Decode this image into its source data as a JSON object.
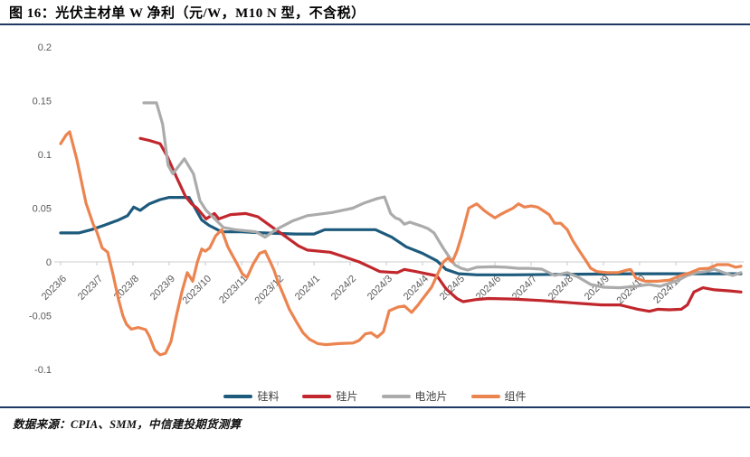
{
  "figure": {
    "title": "图 16：光伏主材单 W 净利（元/W，M10 N 型，不含税）",
    "source": "数据来源：CPIA、SMM，中信建投期货测算"
  },
  "colors": {
    "rule": "#1f3864",
    "axis_line": "#d6d6d6",
    "tick_mark": "#c8c8c8",
    "axis_text": "#595959"
  },
  "chart_data": {
    "type": "line",
    "title": "光伏主材单W净利（元/W，M10 N型，不含税）",
    "xlabel": "",
    "ylabel": "",
    "ylim": [
      -0.115,
      0.205
    ],
    "grid": false,
    "legend_position": "bottom",
    "x_axis": {
      "unit": "months since 2023/6",
      "labels": [
        "2023/6",
        "2023/7",
        "2023/8",
        "2023/9",
        "2023/10",
        "2023/11",
        "2023/12",
        "2024/1",
        "2024/2",
        "2024/3",
        "2024/4",
        "2024/5",
        "2024/6",
        "2024/7",
        "2024/8",
        "2024/9",
        "2024/10",
        "2024/11"
      ]
    },
    "y_axis": {
      "ticks": [
        {
          "v": 0.2,
          "label": "0.2"
        },
        {
          "v": 0.15,
          "label": "0.15"
        },
        {
          "v": 0.1,
          "label": "0.1"
        },
        {
          "v": 0.05,
          "label": "0.05"
        },
        {
          "v": 0,
          "label": "0"
        },
        {
          "v": -0.05,
          "label": "-0.05"
        },
        {
          "v": -0.1,
          "label": "-0.1"
        }
      ]
    },
    "series": [
      {
        "id": "polysilicon",
        "name": "硅料",
        "color": "#1d5a7c",
        "points": [
          [
            0,
            0.027
          ],
          [
            0.5,
            0.027
          ],
          [
            0.85,
            0.03
          ],
          [
            1.2,
            0.034
          ],
          [
            1.6,
            0.039
          ],
          [
            1.85,
            0.043
          ],
          [
            2.02,
            0.051
          ],
          [
            2.2,
            0.048
          ],
          [
            2.45,
            0.054
          ],
          [
            2.75,
            0.058
          ],
          [
            3.0,
            0.06
          ],
          [
            3.55,
            0.06
          ],
          [
            3.7,
            0.051
          ],
          [
            3.9,
            0.039
          ],
          [
            4.1,
            0.034
          ],
          [
            4.45,
            0.028
          ],
          [
            5.0,
            0.028
          ],
          [
            5.6,
            0.027
          ],
          [
            6.5,
            0.026
          ],
          [
            7.0,
            0.026
          ],
          [
            7.3,
            0.03
          ],
          [
            8.0,
            0.03
          ],
          [
            8.7,
            0.03
          ],
          [
            9.15,
            0.023
          ],
          [
            9.55,
            0.014
          ],
          [
            10.0,
            0.008
          ],
          [
            10.4,
            0.001
          ],
          [
            10.65,
            -0.007
          ],
          [
            11.0,
            -0.011
          ],
          [
            11.5,
            -0.012
          ],
          [
            12.5,
            -0.012
          ],
          [
            14.0,
            -0.0115
          ],
          [
            16.0,
            -0.011
          ],
          [
            18.0,
            -0.011
          ],
          [
            18.8,
            -0.011
          ]
        ]
      },
      {
        "id": "wafer",
        "name": "硅片",
        "color": "#c1272d",
        "points": [
          [
            2.2,
            0.115
          ],
          [
            2.45,
            0.113
          ],
          [
            2.75,
            0.11
          ],
          [
            2.95,
            0.098
          ],
          [
            3.2,
            0.079
          ],
          [
            3.45,
            0.061
          ],
          [
            3.62,
            0.054
          ],
          [
            3.77,
            0.05
          ],
          [
            4.02,
            0.04
          ],
          [
            4.25,
            0.045
          ],
          [
            4.37,
            0.04
          ],
          [
            4.7,
            0.044
          ],
          [
            5.12,
            0.045
          ],
          [
            5.45,
            0.042
          ],
          [
            5.82,
            0.033
          ],
          [
            6.2,
            0.024
          ],
          [
            6.57,
            0.015
          ],
          [
            6.82,
            0.011
          ],
          [
            7.45,
            0.009
          ],
          [
            7.82,
            0.005
          ],
          [
            8.25,
            0.0
          ],
          [
            8.57,
            -0.005
          ],
          [
            8.82,
            -0.009
          ],
          [
            9.3,
            -0.01
          ],
          [
            9.5,
            -0.007
          ],
          [
            9.82,
            -0.009
          ],
          [
            10.4,
            -0.013
          ],
          [
            10.65,
            -0.025
          ],
          [
            10.95,
            -0.034
          ],
          [
            11.12,
            -0.037
          ],
          [
            11.5,
            -0.035
          ],
          [
            11.82,
            -0.034
          ],
          [
            12.5,
            -0.0345
          ],
          [
            13.3,
            -0.036
          ],
          [
            14.1,
            -0.038
          ],
          [
            14.95,
            -0.04
          ],
          [
            15.45,
            -0.04
          ],
          [
            15.7,
            -0.042
          ],
          [
            15.95,
            -0.044
          ],
          [
            16.27,
            -0.046
          ],
          [
            16.5,
            -0.044
          ],
          [
            16.82,
            -0.0445
          ],
          [
            17.15,
            -0.044
          ],
          [
            17.32,
            -0.04
          ],
          [
            17.5,
            -0.028
          ],
          [
            17.75,
            -0.024
          ],
          [
            18.07,
            -0.026
          ],
          [
            18.5,
            -0.027
          ],
          [
            18.8,
            -0.028
          ]
        ]
      },
      {
        "id": "cell",
        "name": "电池片",
        "color": "#ababab",
        "points": [
          [
            2.3,
            0.148
          ],
          [
            2.65,
            0.148
          ],
          [
            2.82,
            0.128
          ],
          [
            2.97,
            0.09
          ],
          [
            3.1,
            0.082
          ],
          [
            3.42,
            0.096
          ],
          [
            3.67,
            0.082
          ],
          [
            3.85,
            0.057
          ],
          [
            4.02,
            0.048
          ],
          [
            4.5,
            0.032
          ],
          [
            4.82,
            0.03
          ],
          [
            5.4,
            0.028
          ],
          [
            5.65,
            0.023
          ],
          [
            5.95,
            0.03
          ],
          [
            6.4,
            0.038
          ],
          [
            6.82,
            0.043
          ],
          [
            7.5,
            0.046
          ],
          [
            8.07,
            0.05
          ],
          [
            8.4,
            0.055
          ],
          [
            8.75,
            0.059
          ],
          [
            8.95,
            0.0605
          ],
          [
            9.12,
            0.045
          ],
          [
            9.25,
            0.041
          ],
          [
            9.37,
            0.0395
          ],
          [
            9.5,
            0.035
          ],
          [
            9.65,
            0.037
          ],
          [
            10.0,
            0.033
          ],
          [
            10.15,
            0.031
          ],
          [
            10.32,
            0.027
          ],
          [
            10.57,
            0.013
          ],
          [
            10.75,
            0.004
          ],
          [
            10.9,
            -0.003
          ],
          [
            11.07,
            -0.006
          ],
          [
            11.25,
            -0.0076
          ],
          [
            11.5,
            -0.005
          ],
          [
            11.95,
            -0.0045
          ],
          [
            12.3,
            -0.005
          ],
          [
            12.65,
            -0.006
          ],
          [
            12.95,
            -0.006
          ],
          [
            13.3,
            -0.0067
          ],
          [
            13.65,
            -0.0126
          ],
          [
            14.0,
            -0.01
          ],
          [
            14.3,
            -0.014
          ],
          [
            14.65,
            -0.021
          ],
          [
            15.0,
            -0.0235
          ],
          [
            15.45,
            -0.024
          ],
          [
            15.9,
            -0.0227
          ],
          [
            16.25,
            -0.021
          ],
          [
            16.57,
            -0.0227
          ],
          [
            17.07,
            -0.017
          ],
          [
            17.32,
            -0.0126
          ],
          [
            17.57,
            -0.01
          ],
          [
            17.82,
            -0.009
          ],
          [
            18.07,
            -0.0067
          ],
          [
            18.32,
            -0.01
          ],
          [
            18.57,
            -0.0126
          ],
          [
            18.8,
            -0.01
          ]
        ]
      },
      {
        "id": "module",
        "name": "组件",
        "color": "#ec8450",
        "points": [
          [
            0,
            0.11
          ],
          [
            0.15,
            0.118
          ],
          [
            0.25,
            0.121
          ],
          [
            0.45,
            0.095
          ],
          [
            0.7,
            0.055
          ],
          [
            0.9,
            0.035
          ],
          [
            1.0,
            0.028
          ],
          [
            1.15,
            0.013
          ],
          [
            1.3,
            0.009
          ],
          [
            1.45,
            -0.012
          ],
          [
            1.6,
            -0.035
          ],
          [
            1.72,
            -0.05
          ],
          [
            1.82,
            -0.058
          ],
          [
            1.95,
            -0.0625
          ],
          [
            2.15,
            -0.061
          ],
          [
            2.35,
            -0.063
          ],
          [
            2.45,
            -0.069
          ],
          [
            2.6,
            -0.082
          ],
          [
            2.75,
            -0.0865
          ],
          [
            2.9,
            -0.085
          ],
          [
            3.05,
            -0.074
          ],
          [
            3.2,
            -0.05
          ],
          [
            3.35,
            -0.028
          ],
          [
            3.5,
            -0.01
          ],
          [
            3.65,
            -0.018
          ],
          [
            3.78,
            0.0
          ],
          [
            3.9,
            0.012
          ],
          [
            4.0,
            0.01
          ],
          [
            4.12,
            0.013
          ],
          [
            4.28,
            0.024
          ],
          [
            4.45,
            0.03
          ],
          [
            4.62,
            0.014
          ],
          [
            4.75,
            0.006
          ],
          [
            4.88,
            -0.002
          ],
          [
            5.02,
            -0.011
          ],
          [
            5.15,
            -0.0145
          ],
          [
            5.32,
            -0.002
          ],
          [
            5.5,
            0.008
          ],
          [
            5.65,
            0.01
          ],
          [
            5.78,
            0.001
          ],
          [
            5.9,
            -0.008
          ],
          [
            6.0,
            -0.018
          ],
          [
            6.15,
            -0.03
          ],
          [
            6.32,
            -0.044
          ],
          [
            6.52,
            -0.056
          ],
          [
            6.7,
            -0.066
          ],
          [
            6.88,
            -0.072
          ],
          [
            7.1,
            -0.076
          ],
          [
            7.32,
            -0.077
          ],
          [
            7.7,
            -0.076
          ],
          [
            8.08,
            -0.0755
          ],
          [
            8.25,
            -0.073
          ],
          [
            8.42,
            -0.067
          ],
          [
            8.58,
            -0.066
          ],
          [
            8.75,
            -0.07
          ],
          [
            8.92,
            -0.065
          ],
          [
            9.08,
            -0.0455
          ],
          [
            9.32,
            -0.042
          ],
          [
            9.5,
            -0.041
          ],
          [
            9.7,
            -0.047
          ],
          [
            9.88,
            -0.04
          ],
          [
            10.0,
            -0.0345
          ],
          [
            10.25,
            -0.0235
          ],
          [
            10.45,
            -0.009
          ],
          [
            10.58,
            0.0
          ],
          [
            10.7,
            0.0035
          ],
          [
            10.82,
            0.0
          ],
          [
            10.95,
            0.01
          ],
          [
            11.08,
            0.024
          ],
          [
            11.28,
            0.05
          ],
          [
            11.5,
            0.054
          ],
          [
            11.7,
            0.048
          ],
          [
            11.82,
            0.045
          ],
          [
            12.0,
            0.041
          ],
          [
            12.15,
            0.044
          ],
          [
            12.32,
            0.047
          ],
          [
            12.5,
            0.05
          ],
          [
            12.65,
            0.054
          ],
          [
            12.82,
            0.051
          ],
          [
            13.0,
            0.052
          ],
          [
            13.18,
            0.051
          ],
          [
            13.32,
            0.048
          ],
          [
            13.5,
            0.044
          ],
          [
            13.65,
            0.036
          ],
          [
            13.82,
            0.036
          ],
          [
            14.0,
            0.03
          ],
          [
            14.15,
            0.02
          ],
          [
            14.32,
            0.011
          ],
          [
            14.5,
            0.002
          ],
          [
            14.65,
            -0.006
          ],
          [
            14.82,
            -0.009
          ],
          [
            15.1,
            -0.01
          ],
          [
            15.4,
            -0.01
          ],
          [
            15.6,
            -0.008
          ],
          [
            15.75,
            -0.007
          ],
          [
            15.9,
            -0.015
          ],
          [
            16.15,
            -0.018
          ],
          [
            16.5,
            -0.018
          ],
          [
            16.82,
            -0.017
          ],
          [
            17.15,
            -0.0125
          ],
          [
            17.4,
            -0.01
          ],
          [
            17.65,
            -0.0065
          ],
          [
            17.9,
            -0.006
          ],
          [
            18.15,
            -0.0025
          ],
          [
            18.45,
            -0.0025
          ],
          [
            18.65,
            -0.005
          ],
          [
            18.8,
            -0.004
          ]
        ]
      }
    ]
  }
}
